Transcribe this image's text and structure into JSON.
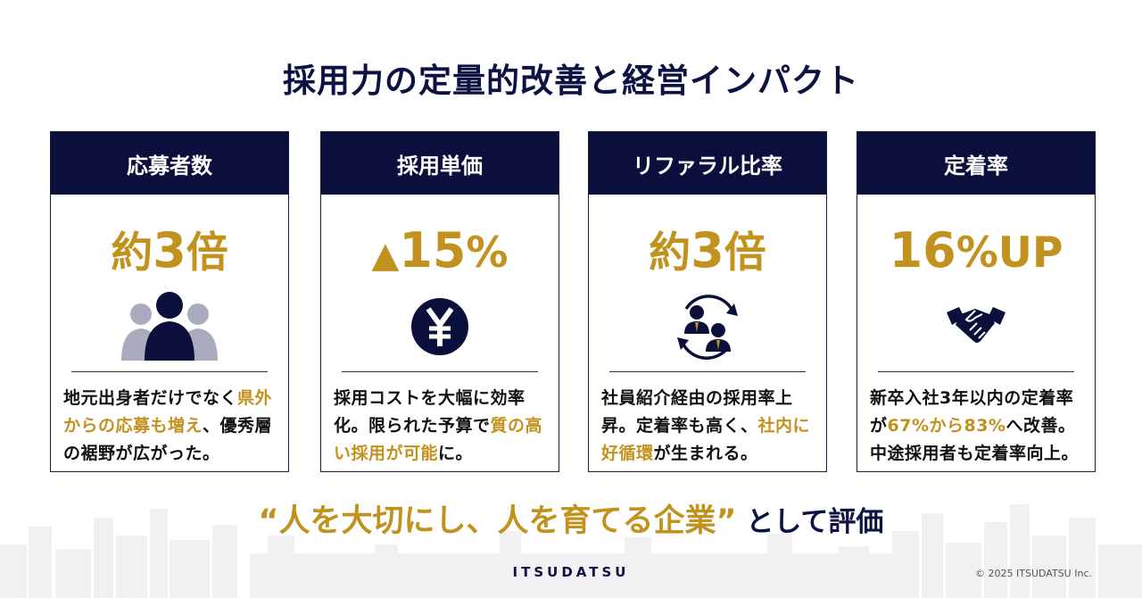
{
  "title": "採用力の定量的改善と経営インパクト",
  "cards": [
    {
      "header": "応募者数",
      "metric_main": "約",
      "metric_big": "3",
      "metric_tail": "倍",
      "icon": "people-group-icon",
      "desc": [
        {
          "t": "地元出身者だけでなく",
          "hl": false
        },
        {
          "t": "県外からの応募も増え",
          "hl": true
        },
        {
          "t": "、優秀層の裾野が広がった。",
          "hl": false
        }
      ]
    },
    {
      "header": "採用単価",
      "metric_main": "▲",
      "metric_big": "15",
      "metric_tail": "%",
      "icon": "yen-coin-icon",
      "desc": [
        {
          "t": "採用コストを大幅に効率化。限られた予算で",
          "hl": false
        },
        {
          "t": "質の高い採用が可能",
          "hl": true
        },
        {
          "t": "に。",
          "hl": false
        }
      ]
    },
    {
      "header": "リファラル比率",
      "metric_main": "約",
      "metric_big": "3",
      "metric_tail": "倍",
      "icon": "referral-cycle-icon",
      "desc": [
        {
          "t": "社員紹介経由の採用率上昇。定着率も高く、",
          "hl": false
        },
        {
          "t": "社内に好循環",
          "hl": true
        },
        {
          "t": "が生まれる。",
          "hl": false
        }
      ]
    },
    {
      "header": "定着率",
      "metric_main": "",
      "metric_big": "16",
      "metric_tail": "%UP",
      "icon": "handshake-icon",
      "desc": [
        {
          "t": "新卒入社3年以内の定着率が",
          "hl": false
        },
        {
          "t": "67%から83%",
          "hl": true
        },
        {
          "t": "へ改善。中途採用者も定着率向上。",
          "hl": false
        }
      ]
    }
  ],
  "tagline": {
    "quote": "“人を大切にし、人を育てる企業”",
    "suffix": " として評価"
  },
  "logo": "ITSUDATSU",
  "copyright": "© 2025 ITSUDATSU Inc.",
  "colors": {
    "navy": "#0a0f3c",
    "gold": "#c2921f",
    "skyline": "#f1f1f3"
  }
}
